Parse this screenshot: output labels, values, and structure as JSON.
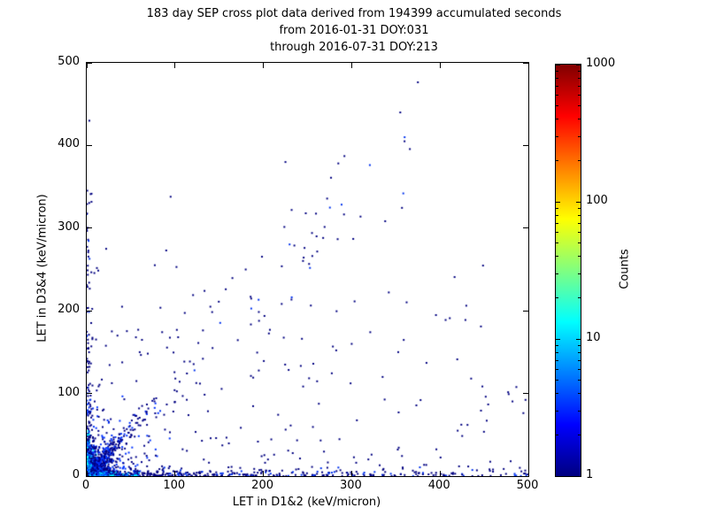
{
  "chart_data": {
    "type": "scatter",
    "title": "183 day SEP cross plot data derived from 194399 accumulated seconds",
    "subtitle1": "from 2016-01-31 DOY:031",
    "subtitle2": "through 2016-07-31 DOY:213",
    "xlabel": "LET in D1&2 (keV/micron)",
    "ylabel": "LET in D3&4 (keV/micron)",
    "xlim": [
      0,
      500
    ],
    "ylim": [
      0,
      500
    ],
    "xticks": [
      0,
      100,
      200,
      300,
      400,
      500
    ],
    "yticks": [
      0,
      100,
      200,
      300,
      400,
      500
    ],
    "grid": false,
    "data_summary": "2D histogram-style scatter: dense cluster of high counts near the origin (LET < 30 in both detectors), bands of low-count events along both axes, a faint diagonal band where LET in D3&4 approximately equals LET in D1&2, and sparse single-count events across the lower-left region.",
    "colorbar": {
      "label": "Counts",
      "scale": "log",
      "ticks": [
        1,
        10,
        100,
        1000
      ],
      "tick_labels": [
        "1",
        "10",
        "100",
        "1000"
      ],
      "colormap": "jet",
      "stops": [
        {
          "pos": 0.0,
          "color": "#000080"
        },
        {
          "pos": 0.125,
          "color": "#0000ff"
        },
        {
          "pos": 0.375,
          "color": "#00ffff"
        },
        {
          "pos": 0.5,
          "color": "#80ff80"
        },
        {
          "pos": 0.625,
          "color": "#ffff00"
        },
        {
          "pos": 0.875,
          "color": "#ff0000"
        },
        {
          "pos": 1.0,
          "color": "#800000"
        }
      ]
    },
    "seed": 42,
    "point_groups": [
      {
        "name": "origin-core",
        "count": 1400,
        "type": "box",
        "x": {
          "dist": "exp",
          "scale": 6,
          "max": 30
        },
        "y": {
          "dist": "exp",
          "scale": 7,
          "max": 35
        },
        "size": 2,
        "palette": [
          [
            "#000099",
            0.2
          ],
          [
            "#0022ee",
            0.3
          ],
          [
            "#0055ff",
            0.2
          ],
          [
            "#00aaff",
            0.15
          ],
          [
            "#00eeff",
            0.15
          ]
        ]
      },
      {
        "name": "origin-hot",
        "count": 400,
        "type": "box",
        "x": {
          "dist": "exp",
          "scale": 2.5,
          "max": 12
        },
        "y": {
          "dist": "exp",
          "scale": 3,
          "max": 15
        },
        "size": 2,
        "palette": [
          [
            "#00ffff",
            0.3
          ],
          [
            "#00ccff",
            0.25
          ],
          [
            "#33ffcc",
            0.1
          ],
          [
            "#0077ff",
            0.35
          ]
        ]
      },
      {
        "name": "origin-halo",
        "count": 500,
        "type": "box",
        "x": {
          "dist": "exp",
          "scale": 18,
          "max": 95
        },
        "y": {
          "dist": "exp",
          "scale": 20,
          "max": 110
        },
        "size": 2,
        "palette": [
          [
            "#000088",
            0.65
          ],
          [
            "#0033ff",
            0.35
          ]
        ]
      },
      {
        "name": "low-diagonal-streak",
        "count": 260,
        "type": "diag",
        "x": {
          "dist": "exp",
          "scale": 28,
          "max": 85
        },
        "slope": 1.15,
        "sigma0": 3,
        "sigma_rel": 0.08,
        "size": 2,
        "palette": [
          [
            "#000088",
            0.55
          ],
          [
            "#0033ff",
            0.45
          ]
        ]
      },
      {
        "name": "x-axis-band",
        "count": 470,
        "type": "box",
        "x": {
          "dist": "pow",
          "max": 500,
          "power": 2.2
        },
        "y": {
          "dist": "exp",
          "scale": 3.5,
          "max": 12
        },
        "size": 2,
        "palette": [
          [
            "#000080",
            0.75
          ],
          [
            "#0033ee",
            0.25
          ]
        ]
      },
      {
        "name": "x-axis-hot",
        "count": 200,
        "type": "box",
        "x": {
          "dist": "exp",
          "scale": 15,
          "max": 60
        },
        "y": {
          "dist": "exp",
          "scale": 1.5,
          "max": 5
        },
        "size": 2,
        "palette": [
          [
            "#00aaff",
            0.3
          ],
          [
            "#00eeff",
            0.3
          ],
          [
            "#0044ff",
            0.4
          ]
        ]
      },
      {
        "name": "y-axis-band",
        "count": 140,
        "type": "box",
        "x": {
          "dist": "exp",
          "scale": 2.5,
          "max": 8
        },
        "y": {
          "dist": "pow",
          "max": 350,
          "power": 2.5
        },
        "size": 2,
        "palette": [
          [
            "#000080",
            0.8
          ],
          [
            "#0033ee",
            0.2
          ]
        ]
      },
      {
        "name": "y-axis-hot",
        "count": 150,
        "type": "box",
        "x": {
          "dist": "exp",
          "scale": 1.5,
          "max": 5
        },
        "y": {
          "dist": "exp",
          "scale": 15,
          "max": 70
        },
        "size": 2,
        "palette": [
          [
            "#00aaff",
            0.3
          ],
          [
            "#00eeff",
            0.2
          ],
          [
            "#0044ff",
            0.5
          ]
        ]
      },
      {
        "name": "main-diagonal",
        "count": 70,
        "type": "diag",
        "x": {
          "dist": "uniform",
          "min": 40,
          "max": 400
        },
        "slope": 1.1,
        "sigma0": 5,
        "sigma_rel": 0.1,
        "size": 2,
        "palette": [
          [
            "#000080",
            0.9
          ],
          [
            "#0033ee",
            0.1
          ]
        ]
      },
      {
        "name": "sparse-field",
        "count": 260,
        "type": "box",
        "x": {
          "dist": "pow",
          "max": 500,
          "power": 1.8
        },
        "y": {
          "dist": "pow",
          "max": 260,
          "power": 2.0
        },
        "size": 2,
        "palette": [
          [
            "#000080",
            1.0
          ]
        ]
      },
      {
        "name": "isolated-points",
        "type": "list",
        "size": 2,
        "palette": [
          [
            "#000080",
            1.0
          ]
        ],
        "points": [
          [
            355,
            440
          ],
          [
            310,
            314
          ],
          [
            225,
            380
          ],
          [
            232,
            322
          ],
          [
            248,
            318
          ],
          [
            95,
            338
          ],
          [
            140,
            205
          ],
          [
            90,
            273
          ],
          [
            3,
            430
          ],
          [
            300,
            160
          ],
          [
            420,
            55
          ],
          [
            480,
            18
          ],
          [
            460,
            8
          ],
          [
            378,
            92
          ],
          [
            335,
            120
          ],
          [
            180,
            250
          ],
          [
            40,
            205
          ],
          [
            22,
            275
          ],
          [
            60,
            150
          ]
        ]
      }
    ]
  }
}
